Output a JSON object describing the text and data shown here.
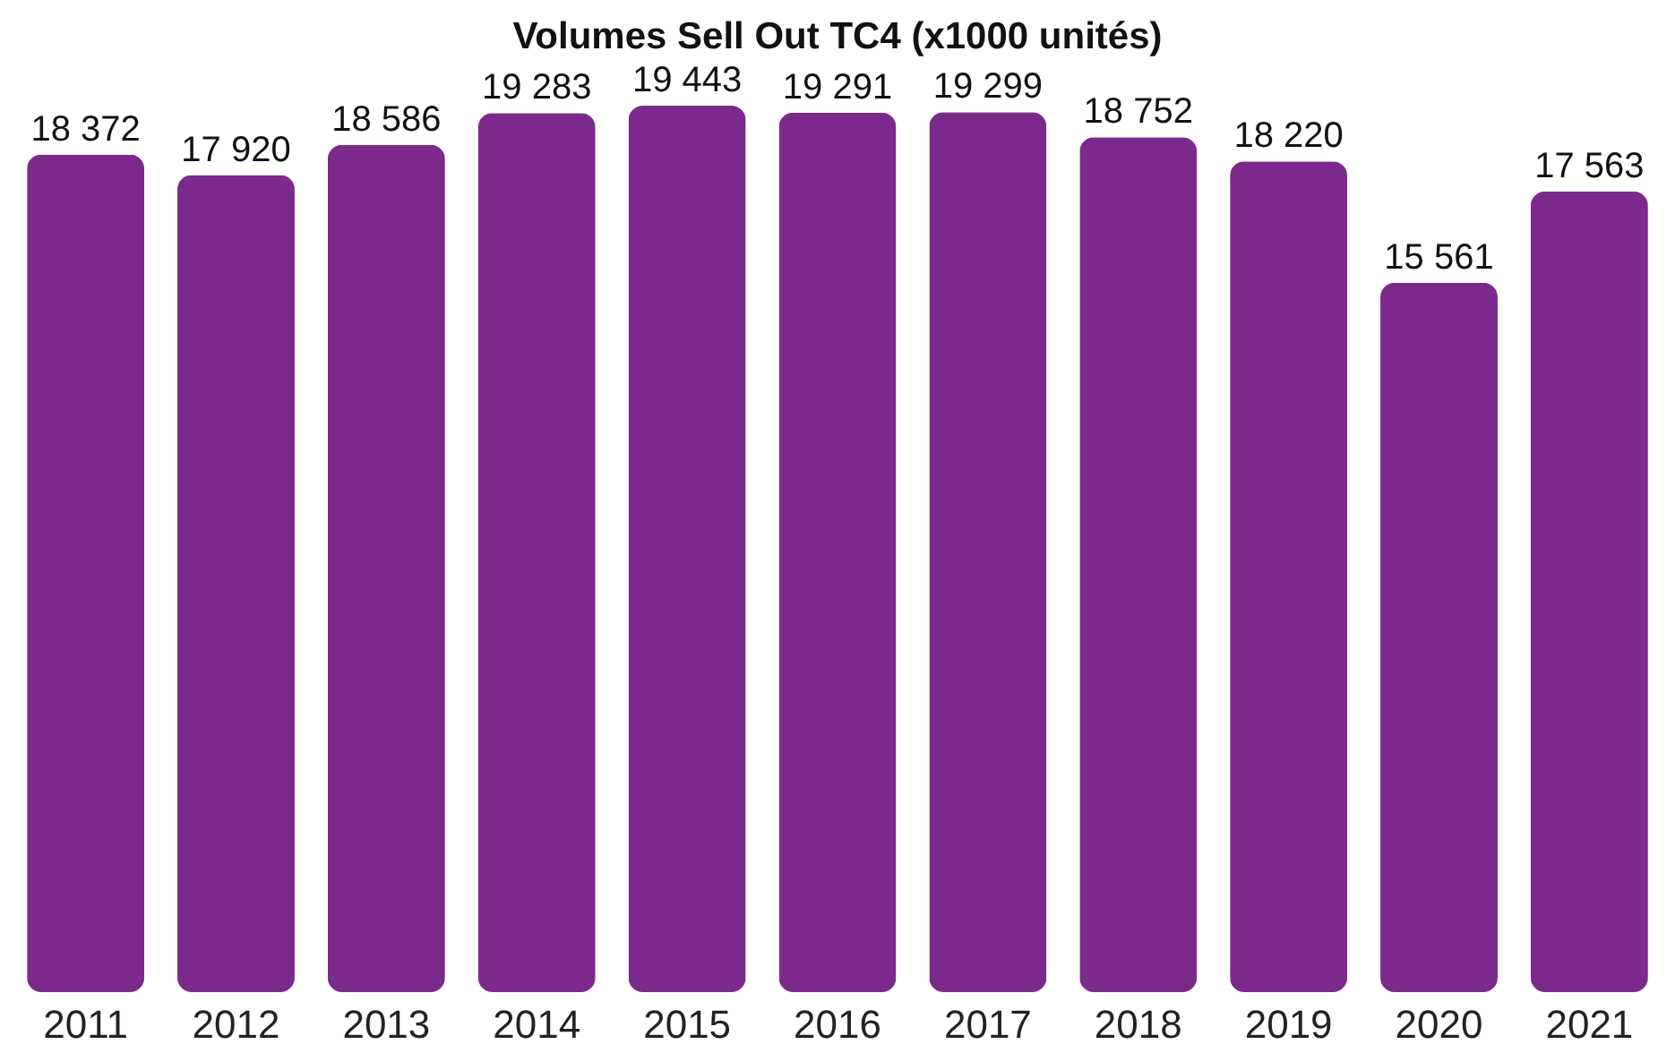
{
  "chart_data": {
    "type": "bar",
    "title": "Volumes Sell Out TC4 (x1000 unités)",
    "categories": [
      "2011",
      "2012",
      "2013",
      "2014",
      "2015",
      "2016",
      "2017",
      "2018",
      "2019",
      "2020",
      "2021"
    ],
    "values": [
      18372,
      17920,
      18586,
      19283,
      19443,
      19291,
      19299,
      18752,
      18220,
      15561,
      17563
    ],
    "value_labels": [
      "18 372",
      "17 920",
      "18 586",
      "19 283",
      "19 443",
      "19 291",
      "19 299",
      "18 752",
      "18 220",
      "15 561",
      "17 563"
    ],
    "color": "#7b2a8c"
  }
}
